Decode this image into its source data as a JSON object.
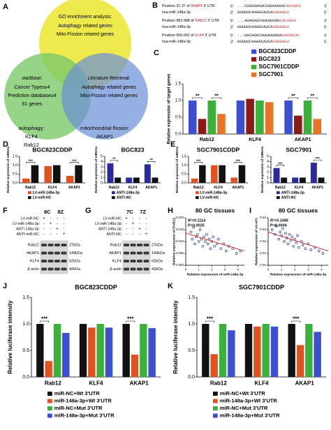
{
  "venn": {
    "label": "A",
    "sets": [
      {
        "title": "GO enrichment analysis:",
        "items": [
          "Autophagy related genes",
          "Mito-Fission related genes"
        ]
      },
      {
        "title": "starBase:",
        "items": [
          "Cancer Types≥4",
          "Prediction database≥4",
          "81 genes"
        ]
      },
      {
        "title": "Literature Retrieval:",
        "items": [
          "Autophagy related genes",
          "Mito-Fission related genes"
        ]
      }
    ],
    "results": [
      {
        "title": "autophagy:",
        "items": [
          "KLF4",
          "Rab12"
        ]
      },
      {
        "title": "mitochondrial fission:",
        "items": [
          "AKAP1"
        ]
      }
    ]
  },
  "alignment": {
    "label": "B",
    "rows": [
      {
        "prefix": "Position 31-37 of ",
        "gene": "AKAP1",
        "suffix": " 3' UTR",
        "start": "5'",
        "seq": "...CUGAGAGUCUUUAUUUG",
        "seed": "CACUGCU",
        "end": "3'"
      },
      {
        "prefix": "hsa-miR-148a-3p",
        "start": "3'",
        "seq": "UGUUUCAAGACAUCA",
        "seed": "CGUGACU",
        "end": "5'"
      },
      {
        "prefix": "Position 982-988 of ",
        "gene": "RAB12",
        "suffix": " 3' UTR",
        "start": "5'",
        "seq": "...AUAGAUCAUAUUUUG",
        "seed": "CACUGCA",
        "end": "3'"
      },
      {
        "prefix": "hsa-miR-148a-3p",
        "start": "3'",
        "seq": "UGUUUCAAGACAUCA",
        "seed": "CGUGACU",
        "end": "5'"
      },
      {
        "prefix": "Position 656-662 of ",
        "gene": "KLF4",
        "suffix": " 3' UTR",
        "start": "5'",
        "seq": "...GACAGUCAUUAAUUUG",
        "seed": "CACUGCU",
        "end": "3'"
      },
      {
        "prefix": "hsa-miR-148a-3p",
        "start": "3'",
        "seq": "UGUUUCAAGACAUCA",
        "seed": "CGUGACU",
        "end": "5'"
      }
    ]
  },
  "blot_f": {
    "label": "F",
    "groups": [
      "8C",
      "8Z"
    ],
    "treatments": [
      {
        "name": "LV-miR-NC:",
        "signs": [
          "+",
          "-",
          "-",
          "-"
        ]
      },
      {
        "name": "LV-miR-148a-3p:",
        "signs": [
          "-",
          "+",
          "-",
          "-"
        ]
      },
      {
        "name": "ANTI-148a-3p:",
        "signs": [
          "-",
          "-",
          "+",
          "-"
        ]
      },
      {
        "name": "ANTI-miR-NC:",
        "signs": [
          "-",
          "-",
          "-",
          "+"
        ]
      }
    ],
    "bands": [
      {
        "name": "Rab12",
        "size": "27kDa"
      },
      {
        "name": "AKAP1",
        "size": "149kDa"
      },
      {
        "name": "KLF4",
        "size": "62kDa"
      },
      {
        "name": "β-actin",
        "size": "42kDa"
      }
    ]
  },
  "blot_g": {
    "label": "G",
    "groups": [
      "7C",
      "7Z"
    ],
    "treatments": [
      {
        "name": "LV-miR-NC:",
        "signs": [
          "+",
          "-",
          "-",
          "-"
        ]
      },
      {
        "name": "LV-miR-148a-3p:",
        "signs": [
          "-",
          "+",
          "-",
          "-"
        ]
      },
      {
        "name": "ANTI-148a-3p:",
        "signs": [
          "-",
          "-",
          "+",
          "-"
        ]
      },
      {
        "name": "ANTI-NC:",
        "signs": [
          "-",
          "-",
          "-",
          "+"
        ]
      }
    ],
    "bands": [
      {
        "name": "Rab12",
        "size": "27kDa"
      },
      {
        "name": "AKAP1",
        "size": "149kDa"
      },
      {
        "name": "KLF4",
        "size": "62kDa"
      },
      {
        "name": "β-actin",
        "size": "42kDa"
      }
    ]
  },
  "chart_data": [
    {
      "label": "C",
      "type": "bar",
      "ylabel": "Relative expression of target genes",
      "categories": [
        "Rab12",
        "KLF4",
        "AKAP1"
      ],
      "series": [
        {
          "name": "BGC823CDDP",
          "color": "#3b4fd0",
          "values": [
            1,
            1,
            1
          ]
        },
        {
          "name": "BGC823",
          "color": "#8b1a1a",
          "values": [
            0.45,
            1.05,
            0.55
          ]
        },
        {
          "name": "SGC7901CDDP",
          "color": "#3bb03b",
          "values": [
            1,
            1,
            1
          ]
        },
        {
          "name": "SGC7901",
          "color": "#e8742a",
          "values": [
            0.6,
            0.95,
            0.45
          ]
        }
      ],
      "ylim": [
        0,
        1.5
      ],
      "yticks": [
        {
          "value": 0,
          "label": "0.0"
        },
        {
          "value": 0.5,
          "label": "0.5"
        },
        {
          "value": 1,
          "label": "1.0"
        },
        {
          "value": 1.5,
          "label": "1.5"
        }
      ],
      "annotations": [
        [
          "**",
          "**"
        ],
        null,
        [
          "**",
          "**"
        ]
      ],
      "legend": "right"
    },
    {
      "label": "D",
      "type": "bar",
      "title": "BGC823CDDP",
      "ylabel": "Relative expression of mRNAs",
      "categories": [
        "Rab12",
        "KLF4",
        "AKAP1"
      ],
      "series": [
        {
          "name": "LV-miR-148a-3p",
          "color": "#e0521f",
          "values": [
            0.25,
            0.95,
            0.4
          ]
        },
        {
          "name": "LV-miR-NC",
          "color": "#111111",
          "values": [
            1,
            1,
            1
          ]
        }
      ],
      "ylim": [
        0,
        1.5
      ],
      "yticks": [
        {
          "value": 0,
          "label": "0.0"
        },
        {
          "value": 0.5,
          "label": "0.5"
        },
        {
          "value": 1,
          "label": "1.0"
        },
        {
          "value": 1.5,
          "label": "1.5"
        }
      ],
      "annotations": [
        "***",
        null,
        "***"
      ],
      "legend": "below"
    },
    {
      "type": "bar",
      "title": "BGC823",
      "ylabel": "Relative expression of mRNAs",
      "categories": [
        "Rab12",
        "KLF4",
        "AKAP1"
      ],
      "series": [
        {
          "name": "ANTI-148a-3p",
          "color": "#2a2aa0",
          "values": [
            3.7,
            1,
            3.5
          ]
        },
        {
          "name": "ANTI-NC",
          "color": "#111111",
          "values": [
            1,
            1,
            1
          ]
        }
      ],
      "ylim": [
        0,
        5
      ],
      "yticks": [
        0,
        1,
        2,
        3,
        4,
        5
      ],
      "annotations": [
        "**",
        null,
        "**"
      ],
      "legend": "below"
    },
    {
      "label": "E",
      "type": "bar",
      "title": "SGC7901CDDP",
      "ylabel": "Relative expression of mRNAs",
      "categories": [
        "Rab12",
        "KLF4",
        "AKAP1"
      ],
      "series": [
        {
          "name": "LV-miR-148a-3p",
          "color": "#e0521f",
          "values": [
            0.25,
            1,
            0.3
          ]
        },
        {
          "name": "LV-miR-NC",
          "color": "#111111",
          "values": [
            1,
            1,
            1
          ]
        }
      ],
      "ylim": [
        0,
        1.5
      ],
      "yticks": [
        {
          "value": 0,
          "label": "0.0"
        },
        {
          "value": 0.5,
          "label": "0.5"
        },
        {
          "value": 1,
          "label": "1.0"
        },
        {
          "value": 1.5,
          "label": "1.5"
        }
      ],
      "annotations": [
        "***",
        null,
        "***"
      ],
      "legend": "below"
    },
    {
      "type": "bar",
      "title": "SGC7901",
      "ylabel": "Relative expression of mRNAs",
      "categories": [
        "Rab12",
        "KLF4",
        "AKAP1"
      ],
      "series": [
        {
          "name": "ANTI-148a-3p",
          "color": "#2a2aa0",
          "values": [
            2.8,
            1,
            3.8
          ]
        },
        {
          "name": "ANTI-NC",
          "color": "#111111",
          "values": [
            1,
            1,
            1
          ]
        }
      ],
      "ylim": [
        0,
        5
      ],
      "yticks": [
        0,
        1,
        2,
        3,
        4,
        5
      ],
      "annotations": [
        "***",
        null,
        "***"
      ],
      "legend": "below"
    },
    {
      "label": "H",
      "type": "scatter",
      "title": "80 GC tissues",
      "stats": [
        "R²=0.1114",
        "P=0.0025"
      ],
      "xlabel": "Relative expression of miR-148a-3p",
      "ylabel": "Relative expression of RAB12",
      "color": "#2b3f8f",
      "x": [
        0.4,
        0.5,
        0.6,
        0.7,
        0.8,
        0.9,
        1.0,
        1.1,
        1.2,
        1.3,
        1.4,
        1.5,
        1.6,
        1.7,
        1.8,
        1.9,
        2.0,
        2.1,
        2.2,
        2.4,
        2.5,
        2.7,
        2.9,
        3.1,
        3.3,
        3.6,
        3.9,
        4.2
      ],
      "y": [
        0.014,
        0.011,
        0.016,
        0.009,
        0.012,
        0.013,
        0.01,
        0.015,
        0.011,
        0.008,
        0.012,
        0.01,
        0.013,
        0.009,
        0.011,
        0.007,
        0.01,
        0.012,
        0.008,
        0.009,
        0.011,
        0.007,
        0.009,
        0.006,
        0.008,
        0.007,
        0.005,
        0.006
      ],
      "trend": {
        "color": "#d22222",
        "x": [
          0,
          4.5
        ],
        "y": [
          0.0135,
          0.006
        ]
      },
      "xlim": [
        0,
        4.5
      ],
      "xticks": [
        0,
        1,
        2,
        3,
        4
      ],
      "ylim": [
        0,
        0.02
      ],
      "yticks": [
        {
          "value": 0,
          "label": "0.000"
        },
        {
          "value": 0.005,
          "label": "0.005"
        },
        {
          "value": 0.01,
          "label": "0.010"
        },
        {
          "value": 0.015,
          "label": "0.015"
        },
        {
          "value": 0.02,
          "label": "0.020"
        }
      ]
    },
    {
      "label": "I",
      "type": "scatter",
      "title": "80 GC tissues",
      "stats": [
        "R²=0.1495",
        "P=0.0004"
      ],
      "xlabel": "Relative expression of miR-148a-3p",
      "ylabel": "Relative expression of AKAP1",
      "color": "#2b3f8f",
      "x": [
        0.3,
        0.5,
        0.6,
        0.8,
        0.9,
        1.0,
        1.1,
        1.2,
        1.3,
        1.4,
        1.5,
        1.6,
        1.7,
        1.8,
        1.9,
        2.0,
        2.1,
        2.2,
        2.3,
        2.5,
        2.6,
        2.8,
        3.0,
        3.2,
        3.5,
        3.8,
        4.1
      ],
      "y": [
        0.03,
        0.026,
        0.033,
        0.022,
        0.028,
        0.025,
        0.031,
        0.02,
        0.027,
        0.023,
        0.018,
        0.026,
        0.021,
        0.024,
        0.016,
        0.022,
        0.019,
        0.025,
        0.015,
        0.02,
        0.017,
        0.014,
        0.018,
        0.013,
        0.015,
        0.012,
        0.01
      ],
      "trend": {
        "color": "#d22222",
        "x": [
          0,
          4.5
        ],
        "y": [
          0.028,
          0.012
        ]
      },
      "xlim": [
        0,
        4.5
      ],
      "xticks": [
        0,
        1,
        2,
        3,
        4
      ],
      "ylim": [
        0,
        0.04
      ],
      "yticks": [
        {
          "value": 0,
          "label": "0.00"
        },
        {
          "value": 0.01,
          "label": "0.01"
        },
        {
          "value": 0.02,
          "label": "0.02"
        },
        {
          "value": 0.03,
          "label": "0.03"
        },
        {
          "value": 0.04,
          "label": "0.04"
        }
      ]
    },
    {
      "label": "J",
      "type": "bar",
      "title": "BGC823CDDP",
      "ylabel": "Relative luciferase intensity",
      "categories": [
        "Rab12",
        "KLF4",
        "AKAP1"
      ],
      "series": [
        {
          "name": "miR-NC+Wt 3'UTR",
          "color": "#111111",
          "values": [
            1,
            1,
            1
          ]
        },
        {
          "name": "miR-148a-3p+Wt 3'UTR",
          "color": "#e0521f",
          "values": [
            0.3,
            0.93,
            0.42
          ]
        },
        {
          "name": "miR-NC+Mut 3'UTR",
          "color": "#3bb03b",
          "values": [
            1,
            1,
            1
          ]
        },
        {
          "name": "miR-148a-3p+Mut 3'UTR",
          "color": "#3b4fd0",
          "values": [
            0.83,
            0.93,
            0.92
          ]
        }
      ],
      "ylim": [
        0,
        1.5
      ],
      "yticks": [
        {
          "value": 0,
          "label": "0.0"
        },
        {
          "value": 0.5,
          "label": "0.5"
        },
        {
          "value": 1,
          "label": "1.0"
        },
        {
          "value": 1.5,
          "label": "1.5"
        }
      ],
      "annotations": [
        "***",
        null,
        "***"
      ],
      "legend": "below"
    },
    {
      "label": "K",
      "type": "bar",
      "title": "SGC7901CDDP",
      "ylabel": "Relative luciferase intensity",
      "categories": [
        "Rab12",
        "KLF4",
        "AKAP1"
      ],
      "series": [
        {
          "name": "miR-NC+Wt 3'UTR",
          "color": "#111111",
          "values": [
            1,
            1,
            1
          ]
        },
        {
          "name": "miR-148a-3p+Wt 3'UTR",
          "color": "#e0521f",
          "values": [
            0.43,
            0.95,
            0.6
          ]
        },
        {
          "name": "miR-NC+Mut 3'UTR",
          "color": "#3bb03b",
          "values": [
            1,
            1,
            1
          ]
        },
        {
          "name": "miR-148a-3p+Mut 3'UTR",
          "color": "#3b4fd0",
          "values": [
            0.88,
            0.95,
            0.85
          ]
        }
      ],
      "ylim": [
        0,
        1.5
      ],
      "yticks": [
        {
          "value": 0,
          "label": "0.0"
        },
        {
          "value": 0.5,
          "label": "0.5"
        },
        {
          "value": 1,
          "label": "1.0"
        },
        {
          "value": 1.5,
          "label": "1.5"
        }
      ],
      "annotations": [
        "***",
        null,
        "***"
      ],
      "legend": "below"
    }
  ]
}
